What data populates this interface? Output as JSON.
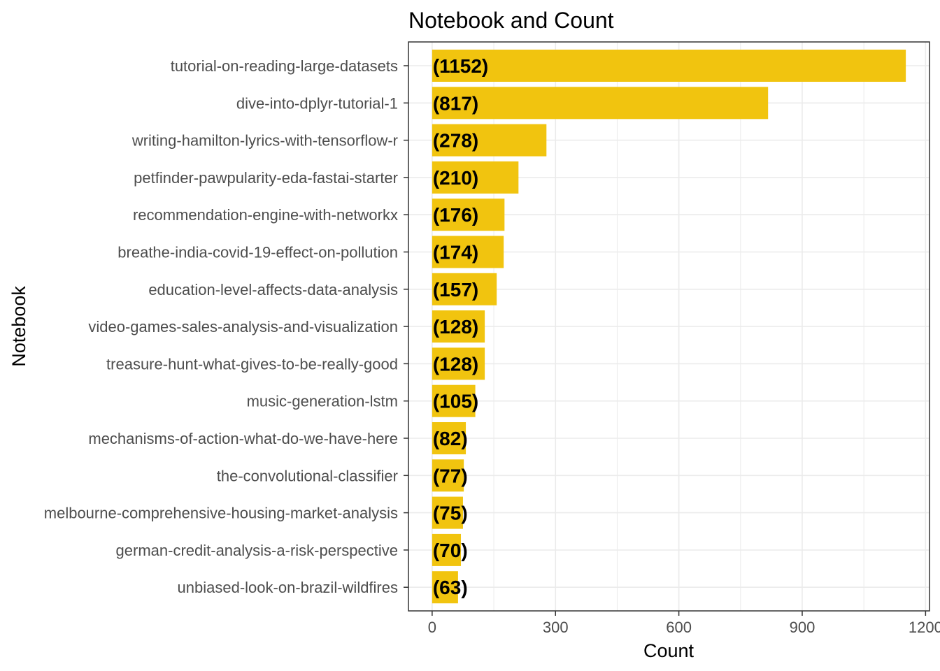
{
  "chart_data": {
    "type": "bar",
    "orientation": "horizontal",
    "title": "Notebook and Count",
    "xlabel": "Count",
    "ylabel": "Notebook",
    "categories": [
      "tutorial-on-reading-large-datasets",
      "dive-into-dplyr-tutorial-1",
      "writing-hamilton-lyrics-with-tensorflow-r",
      "petfinder-pawpularity-eda-fastai-starter",
      "recommendation-engine-with-networkx",
      "breathe-india-covid-19-effect-on-pollution",
      "education-level-affects-data-analysis",
      "video-games-sales-analysis-and-visualization",
      "treasure-hunt-what-gives-to-be-really-good",
      "music-generation-lstm",
      "mechanisms-of-action-what-do-we-have-here",
      "the-convolutional-classifier",
      "melbourne-comprehensive-housing-market-analysis",
      "german-credit-analysis-a-risk-perspective",
      "unbiased-look-on-brazil-wildfires"
    ],
    "values": [
      1152,
      817,
      278,
      210,
      176,
      174,
      157,
      128,
      128,
      105,
      82,
      77,
      75,
      70,
      63
    ],
    "data_labels": [
      "(1152)",
      "(817)",
      "(278)",
      "(210)",
      "(176)",
      "(174)",
      "(157)",
      "(128)",
      "(128)",
      "(105)",
      "(82)",
      "(77)",
      "(75)",
      "(70)",
      "(63)"
    ],
    "xticks": [
      0,
      300,
      600,
      900,
      1200
    ],
    "xtick_labels": [
      "0",
      "300",
      "600",
      "900",
      "1200"
    ],
    "xlim": [
      -57.6,
      1209.6
    ],
    "grid": true,
    "bar_color": "#F1C40F",
    "grid_color": "#ebebeb",
    "frame_color": "#333333"
  }
}
